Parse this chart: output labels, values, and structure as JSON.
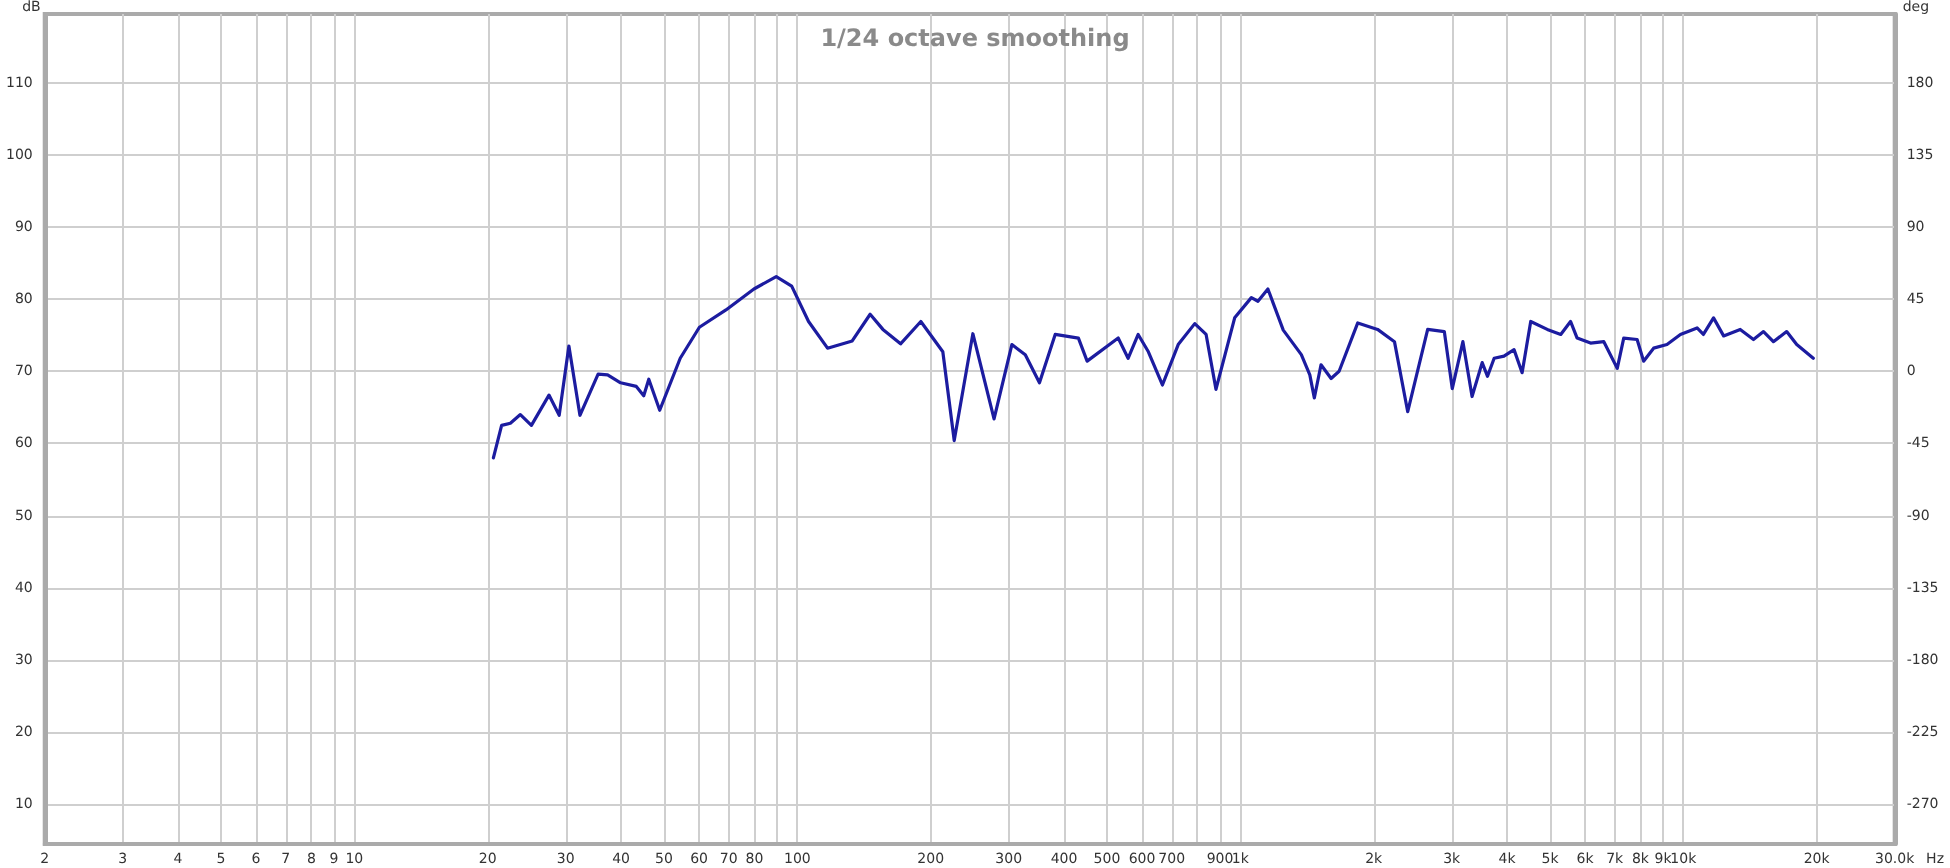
{
  "chart_data": {
    "type": "line",
    "title": "1/24 octave smoothing",
    "xlabel": "Hz",
    "ylabel": "dB",
    "y2label": "deg",
    "log": "x",
    "grid": true,
    "marker": "none",
    "line_style": "solid",
    "xlim": [
      2,
      30000
    ],
    "xticks": [
      2,
      3,
      4,
      5,
      6,
      7,
      8,
      9,
      10,
      20,
      30,
      40,
      50,
      60,
      70,
      80,
      {
        "value": 90,
        "label": null
      },
      100,
      200,
      300,
      400,
      500,
      600,
      700,
      {
        "value": 800,
        "label": null
      },
      900,
      {
        "value": 1000,
        "label": "1k"
      },
      {
        "value": 2000,
        "label": "2k"
      },
      {
        "value": 3000,
        "label": "3k"
      },
      {
        "value": 4000,
        "label": "4k"
      },
      {
        "value": 5000,
        "label": "5k"
      },
      {
        "value": 6000,
        "label": "6k"
      },
      {
        "value": 7000,
        "label": "7k"
      },
      {
        "value": 8000,
        "label": "8k"
      },
      {
        "value": 9000,
        "label": "9k"
      },
      {
        "value": 10000,
        "label": "10k"
      },
      {
        "value": 20000,
        "label": "20k"
      },
      {
        "value": 30000,
        "label": "30.0k"
      }
    ],
    "ylim": [
      4.5,
      119.5
    ],
    "yticks": [
      10,
      20,
      30,
      40,
      50,
      60,
      70,
      80,
      90,
      100,
      110
    ],
    "y2lim": [
      -294.75,
      222.75
    ],
    "y2ticks": [
      -270,
      -225,
      -180,
      -135,
      -90,
      -45,
      0,
      45,
      90,
      135,
      180
    ],
    "series": [
      {
        "color": "#1c1ca0",
        "x": [
          20.6,
          21.5,
          22.5,
          23.7,
          25.1,
          27.5,
          29.0,
          30.5,
          32.3,
          35.5,
          37.3,
          39.9,
          43.3,
          45.0,
          46.2,
          48.9,
          54.4,
          60.1,
          69.0,
          79.8,
          89.6,
          97.1,
          106,
          117,
          133,
          146,
          156,
          171,
          190,
          213,
          226,
          249,
          278,
          305,
          327,
          352,
          382,
          431,
          451,
          530,
          558,
          588,
          620,
          667,
          724,
          789,
          837,
          881,
          971,
          1059,
          1096,
          1154,
          1250,
          1373,
          1435,
          1469,
          1521,
          1603,
          1671,
          1841,
          2041,
          2228,
          2387,
          2648,
          2887,
          3009,
          3180,
          3335,
          3515,
          3614,
          3741,
          3937,
          4148,
          4326,
          4524,
          4930,
          5288,
          5564,
          5758,
          6174,
          6616,
          7093,
          7336,
          7865,
          8135,
          8569,
          9185,
          9850,
          10740,
          11100,
          11700,
          12330,
          13440,
          14400,
          15170,
          15970,
          17110,
          18030,
          19650
        ],
        "values": [
          58.0,
          62.5,
          62.8,
          64.0,
          62.5,
          66.7,
          63.9,
          73.5,
          63.9,
          69.6,
          69.5,
          68.4,
          67.9,
          66.6,
          68.9,
          64.6,
          71.8,
          76.1,
          78.5,
          81.4,
          83.1,
          81.8,
          76.9,
          73.2,
          74.2,
          77.9,
          75.8,
          73.8,
          76.9,
          72.7,
          60.4,
          75.2,
          63.4,
          73.7,
          72.3,
          68.4,
          75.1,
          74.6,
          71.4,
          74.6,
          71.8,
          75.1,
          72.7,
          68.1,
          73.7,
          76.6,
          75.1,
          67.5,
          77.4,
          80.2,
          79.7,
          81.4,
          75.7,
          72.3,
          69.5,
          66.3,
          70.9,
          69.0,
          70.0,
          76.7,
          75.8,
          74.1,
          64.4,
          75.8,
          75.5,
          67.6,
          74.1,
          66.5,
          71.2,
          69.3,
          71.8,
          72.1,
          73.0,
          69.8,
          76.9,
          75.8,
          75.1,
          76.9,
          74.6,
          73.9,
          74.1,
          70.4,
          74.6,
          74.4,
          71.4,
          73.2,
          73.7,
          75.1,
          76.0,
          75.1,
          77.4,
          74.9,
          75.8,
          74.4,
          75.5,
          74.1,
          75.5,
          73.7,
          71.8
        ]
      }
    ]
  }
}
